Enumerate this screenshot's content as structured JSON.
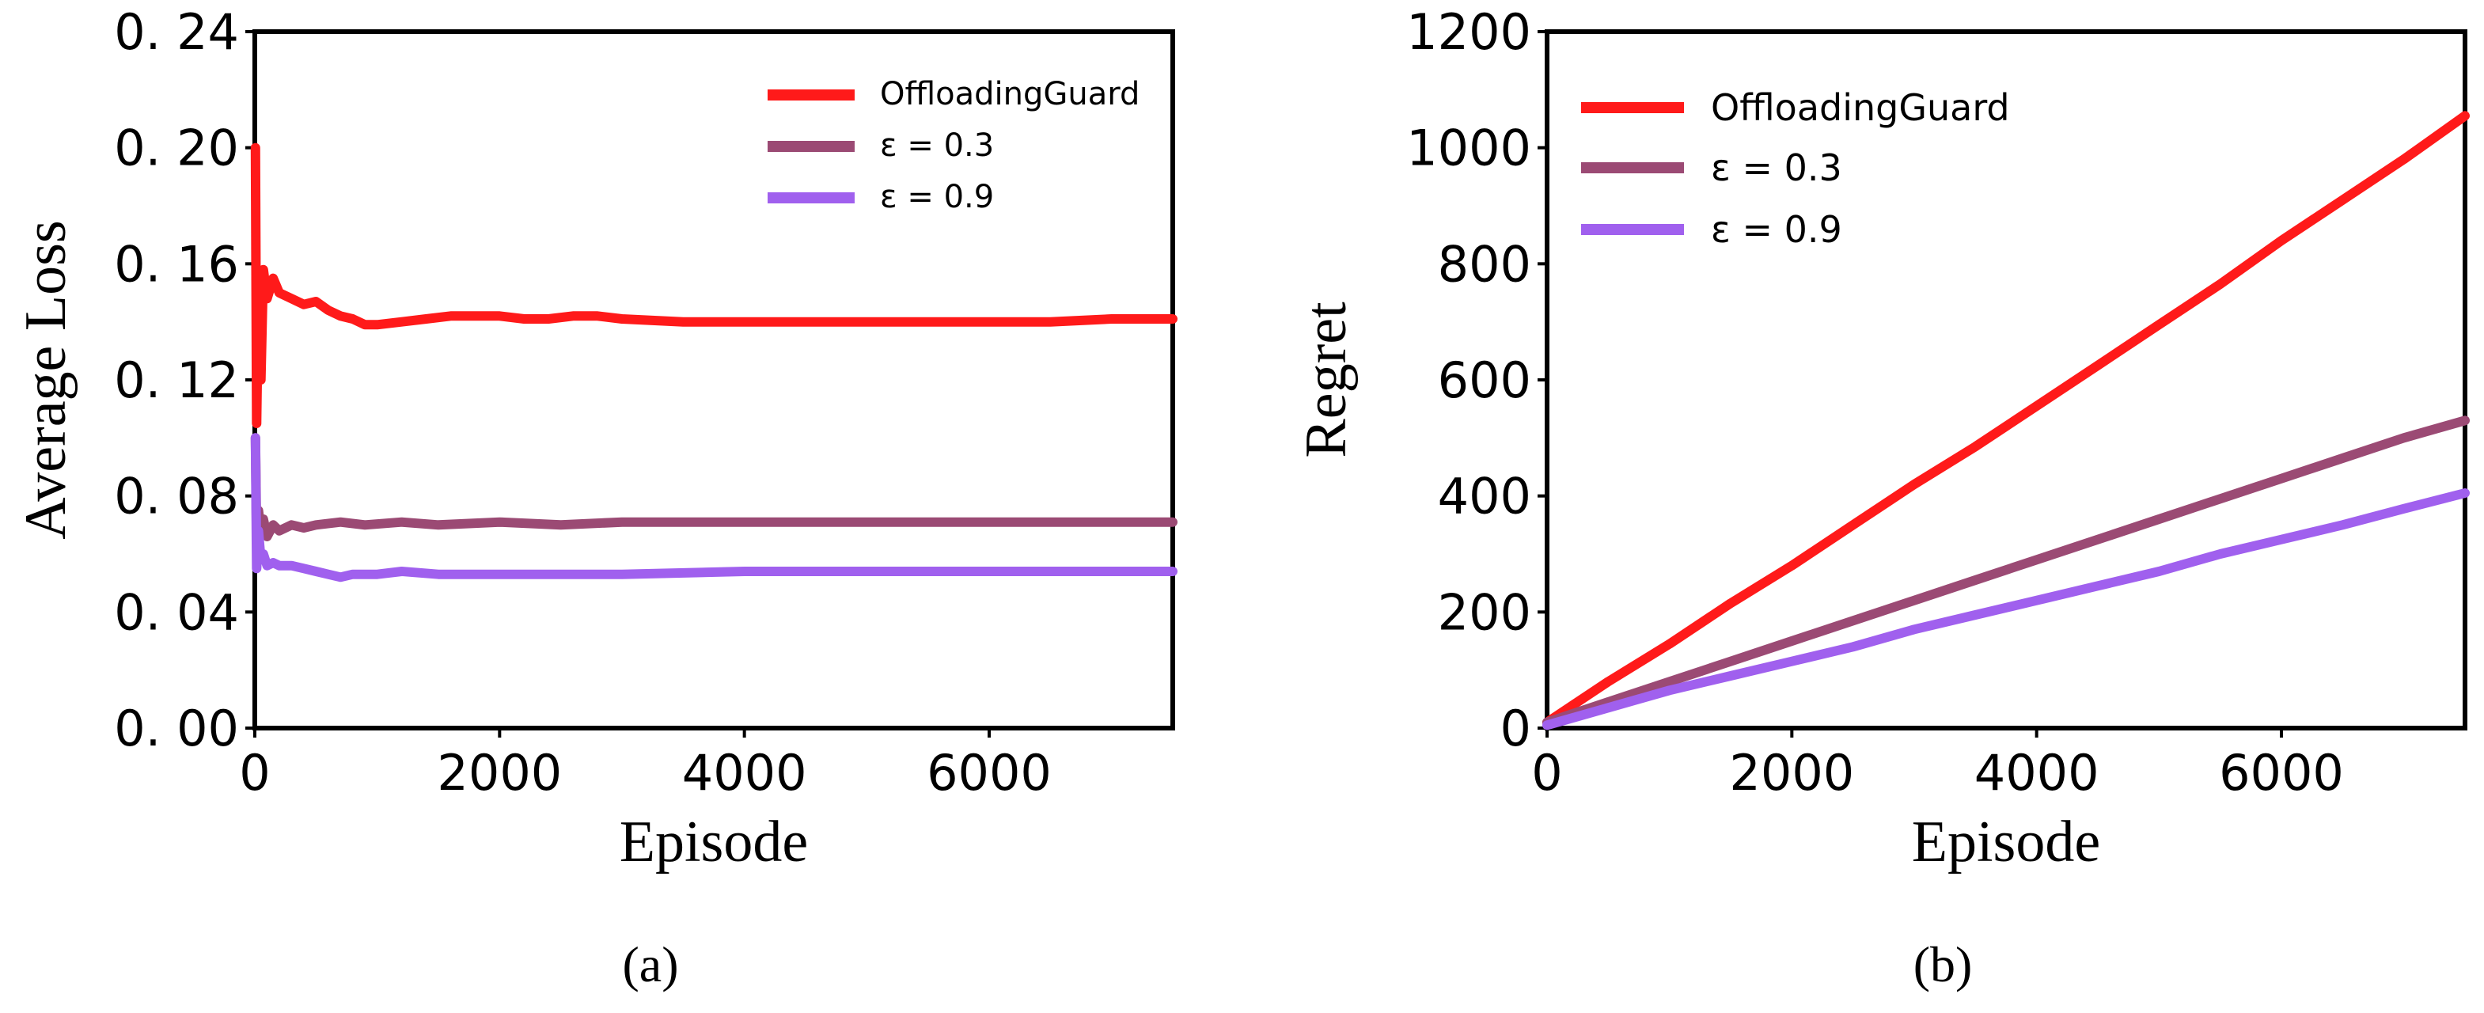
{
  "colors": {
    "offloadingguard": "#ff1a1a",
    "eps03": "#9b4a74",
    "eps09": "#a060ee"
  },
  "chart_data": [
    {
      "type": "line",
      "panel": "(a)",
      "xlabel": "Episode",
      "ylabel": "Average Loss",
      "xlim": [
        0,
        7500
      ],
      "ylim": [
        0,
        0.24
      ],
      "xticks": [
        0,
        2000,
        4000,
        6000
      ],
      "xtick_labels": [
        "0",
        "2000",
        "4000",
        "6000"
      ],
      "yticks": [
        0,
        0.04,
        0.08,
        0.12,
        0.16,
        0.2,
        0.24
      ],
      "ytick_labels": [
        "0. 00",
        "0. 04",
        "0. 08",
        "0. 12",
        "0. 16",
        "0. 20",
        "0. 24"
      ],
      "legend_position": "top-right",
      "grid": false,
      "series": [
        {
          "name": "OffloadingGuard",
          "color": "#ff1a1a",
          "x": [
            5,
            15,
            30,
            50,
            70,
            100,
            150,
            200,
            300,
            400,
            500,
            600,
            700,
            800,
            900,
            1000,
            1200,
            1400,
            1600,
            1800,
            2000,
            2200,
            2400,
            2600,
            2800,
            3000,
            3500,
            4000,
            4500,
            5000,
            5500,
            6000,
            6500,
            7000,
            7500
          ],
          "y": [
            0.2,
            0.105,
            0.15,
            0.12,
            0.158,
            0.148,
            0.155,
            0.15,
            0.148,
            0.146,
            0.147,
            0.144,
            0.142,
            0.141,
            0.139,
            0.139,
            0.14,
            0.141,
            0.142,
            0.142,
            0.142,
            0.141,
            0.141,
            0.142,
            0.142,
            0.141,
            0.14,
            0.14,
            0.14,
            0.14,
            0.14,
            0.14,
            0.14,
            0.141,
            0.141
          ]
        },
        {
          "name": "ε = 0.3",
          "color": "#9b4a74",
          "x": [
            5,
            15,
            30,
            50,
            70,
            100,
            150,
            200,
            300,
            400,
            500,
            700,
            900,
            1200,
            1500,
            2000,
            2500,
            3000,
            4000,
            5000,
            6000,
            7000,
            7500
          ],
          "y": [
            0.1,
            0.065,
            0.075,
            0.068,
            0.072,
            0.066,
            0.07,
            0.068,
            0.07,
            0.069,
            0.07,
            0.071,
            0.07,
            0.071,
            0.07,
            0.071,
            0.07,
            0.071,
            0.071,
            0.071,
            0.071,
            0.071,
            0.071
          ]
        },
        {
          "name": "ε = 0.9",
          "color": "#a060ee",
          "x": [
            5,
            15,
            30,
            50,
            70,
            100,
            150,
            200,
            300,
            400,
            500,
            600,
            700,
            800,
            1000,
            1200,
            1500,
            2000,
            2500,
            3000,
            4000,
            5000,
            6000,
            7000,
            7500
          ],
          "y": [
            0.1,
            0.055,
            0.068,
            0.058,
            0.06,
            0.056,
            0.057,
            0.056,
            0.056,
            0.055,
            0.054,
            0.053,
            0.052,
            0.053,
            0.053,
            0.054,
            0.053,
            0.053,
            0.053,
            0.053,
            0.054,
            0.054,
            0.054,
            0.054,
            0.054
          ]
        }
      ]
    },
    {
      "type": "line",
      "panel": "(b)",
      "xlabel": "Episode",
      "ylabel": "Regret",
      "xlim": [
        0,
        7500
      ],
      "ylim": [
        0,
        1200
      ],
      "xticks": [
        0,
        2000,
        4000,
        6000
      ],
      "xtick_labels": [
        "0",
        "2000",
        "4000",
        "6000"
      ],
      "yticks": [
        0,
        200,
        400,
        600,
        800,
        1000,
        1200
      ],
      "ytick_labels": [
        "0",
        "200",
        "400",
        "600",
        "800",
        "1000",
        "1200"
      ],
      "legend_position": "top-left",
      "grid": false,
      "series": [
        {
          "name": "OffloadingGuard",
          "color": "#ff1a1a",
          "x": [
            0,
            500,
            1000,
            1500,
            2000,
            2500,
            3000,
            3500,
            4000,
            4500,
            5000,
            5500,
            6000,
            6500,
            7000,
            7500
          ],
          "y": [
            10,
            80,
            145,
            215,
            280,
            350,
            420,
            485,
            555,
            625,
            695,
            765,
            840,
            910,
            980,
            1055
          ]
        },
        {
          "name": "ε = 0.3",
          "color": "#9b4a74",
          "x": [
            0,
            500,
            1000,
            1500,
            2000,
            2500,
            3000,
            3500,
            4000,
            4500,
            5000,
            5500,
            6000,
            6500,
            7000,
            7500
          ],
          "y": [
            10,
            45,
            80,
            115,
            150,
            185,
            220,
            255,
            290,
            325,
            360,
            395,
            430,
            465,
            500,
            530
          ]
        },
        {
          "name": "ε = 0.9",
          "color": "#a060ee",
          "x": [
            0,
            500,
            1000,
            1500,
            2000,
            2500,
            3000,
            3500,
            4000,
            4500,
            5000,
            5500,
            6000,
            6500,
            7000,
            7500
          ],
          "y": [
            5,
            35,
            65,
            90,
            115,
            140,
            170,
            195,
            220,
            245,
            270,
            300,
            325,
            350,
            378,
            405
          ]
        }
      ]
    }
  ]
}
